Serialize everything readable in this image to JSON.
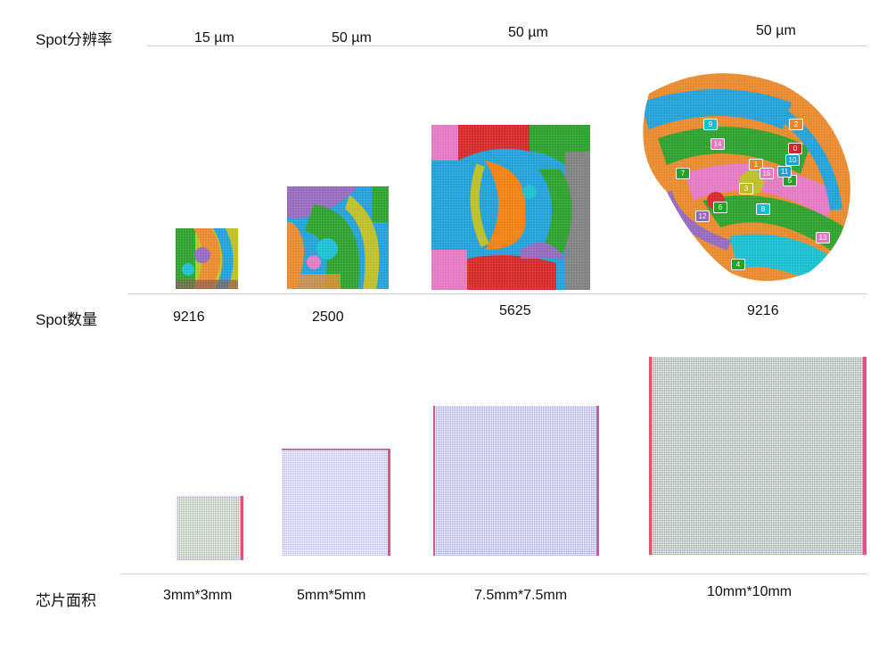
{
  "rows": {
    "resolution_label": "Spot分辨率",
    "count_label": "Spot数量",
    "area_label": "芯片面积"
  },
  "columns": [
    {
      "resolution": "15 µm",
      "spot_count": "9216",
      "chip_area": "3mm*3mm"
    },
    {
      "resolution": "50 µm",
      "spot_count": "2500",
      "chip_area": "5mm*5mm"
    },
    {
      "resolution": "50 µm",
      "spot_count": "5625",
      "chip_area": "7.5mm*7.5mm"
    },
    {
      "resolution": "50 µm",
      "spot_count": "9216",
      "chip_area": "10mm*10mm"
    }
  ],
  "cluster_labels": [
    "0",
    "1",
    "2",
    "3",
    "4",
    "5",
    "6",
    "7",
    "8",
    "9",
    "10",
    "11",
    "12",
    "13",
    "14",
    "15"
  ],
  "colors": {
    "chip_grid": "#7a7cf0",
    "chip_edge": "#e0508c",
    "cluster_palette": [
      "#1f9fd8",
      "#2aa02a",
      "#e8882a",
      "#d62728",
      "#9467bd",
      "#8c564b",
      "#e377c2",
      "#bcbd22",
      "#17becf",
      "#f07f0e",
      "#4aa86a",
      "#7f7f7f"
    ]
  }
}
